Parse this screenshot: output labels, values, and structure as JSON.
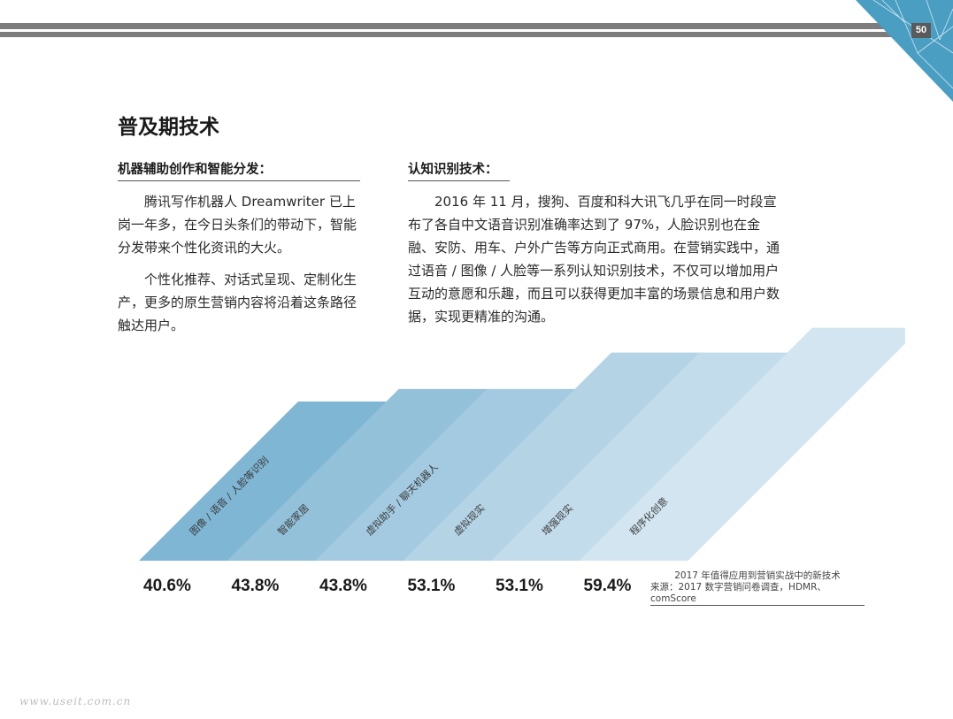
{
  "page_number": "50",
  "title": "普及期技术",
  "left_column": {
    "heading": "机器辅助创作和智能分发：",
    "paragraphs": [
      "腾讯写作机器人 Dreamwriter 已上岗一年多，在今日头条们的带动下，智能分发带来个性化资讯的大火。",
      "个性化推荐、对话式呈现、定制化生产，更多的原生营销内容将沿着这条路径触达用户。"
    ]
  },
  "right_column": {
    "heading": "认知识别技术：",
    "paragraphs": [
      "2016 年 11 月，搜狗、百度和科大讯飞几乎在同一时段宣布了各自中文语音识别准确率达到了 97%，人脸识别也在金融、安防、用车、户外广告等方向正式商用。在营销实践中，通过语音 / 图像 / 人脸等一系列认知识别技术，不仅可以增加用户互动的意愿和乐趣，而且可以获得更加丰富的场景信息和用户数据，实现更精准的沟通。"
    ]
  },
  "chart_data": {
    "type": "bar",
    "categories": [
      "图像 / 语音 / 人脸等识别",
      "智能家居",
      "虚拟助手 / 聊天机器人",
      "虚拟现实",
      "增强现实",
      "程序化创意"
    ],
    "values": [
      40.6,
      43.8,
      43.8,
      53.1,
      53.1,
      59.4
    ],
    "value_labels": [
      "40.6%",
      "43.8%",
      "43.8%",
      "53.1%",
      "53.1%",
      "59.4%"
    ],
    "unit": "%",
    "colors": [
      "#7fb6d4",
      "#93c1da",
      "#a3cae0",
      "#b4d4e6",
      "#c3dceb",
      "#d2e5f0"
    ],
    "caption": "2017 年值得应用到营销实战中的新技术",
    "source": "来源：2017 数字营销问卷调查，HDMR、comScore"
  },
  "watermark": "www.useit.com.cn",
  "accent_colors": {
    "topbar": "#7d7d7d",
    "corner": "#4a9ec2"
  }
}
